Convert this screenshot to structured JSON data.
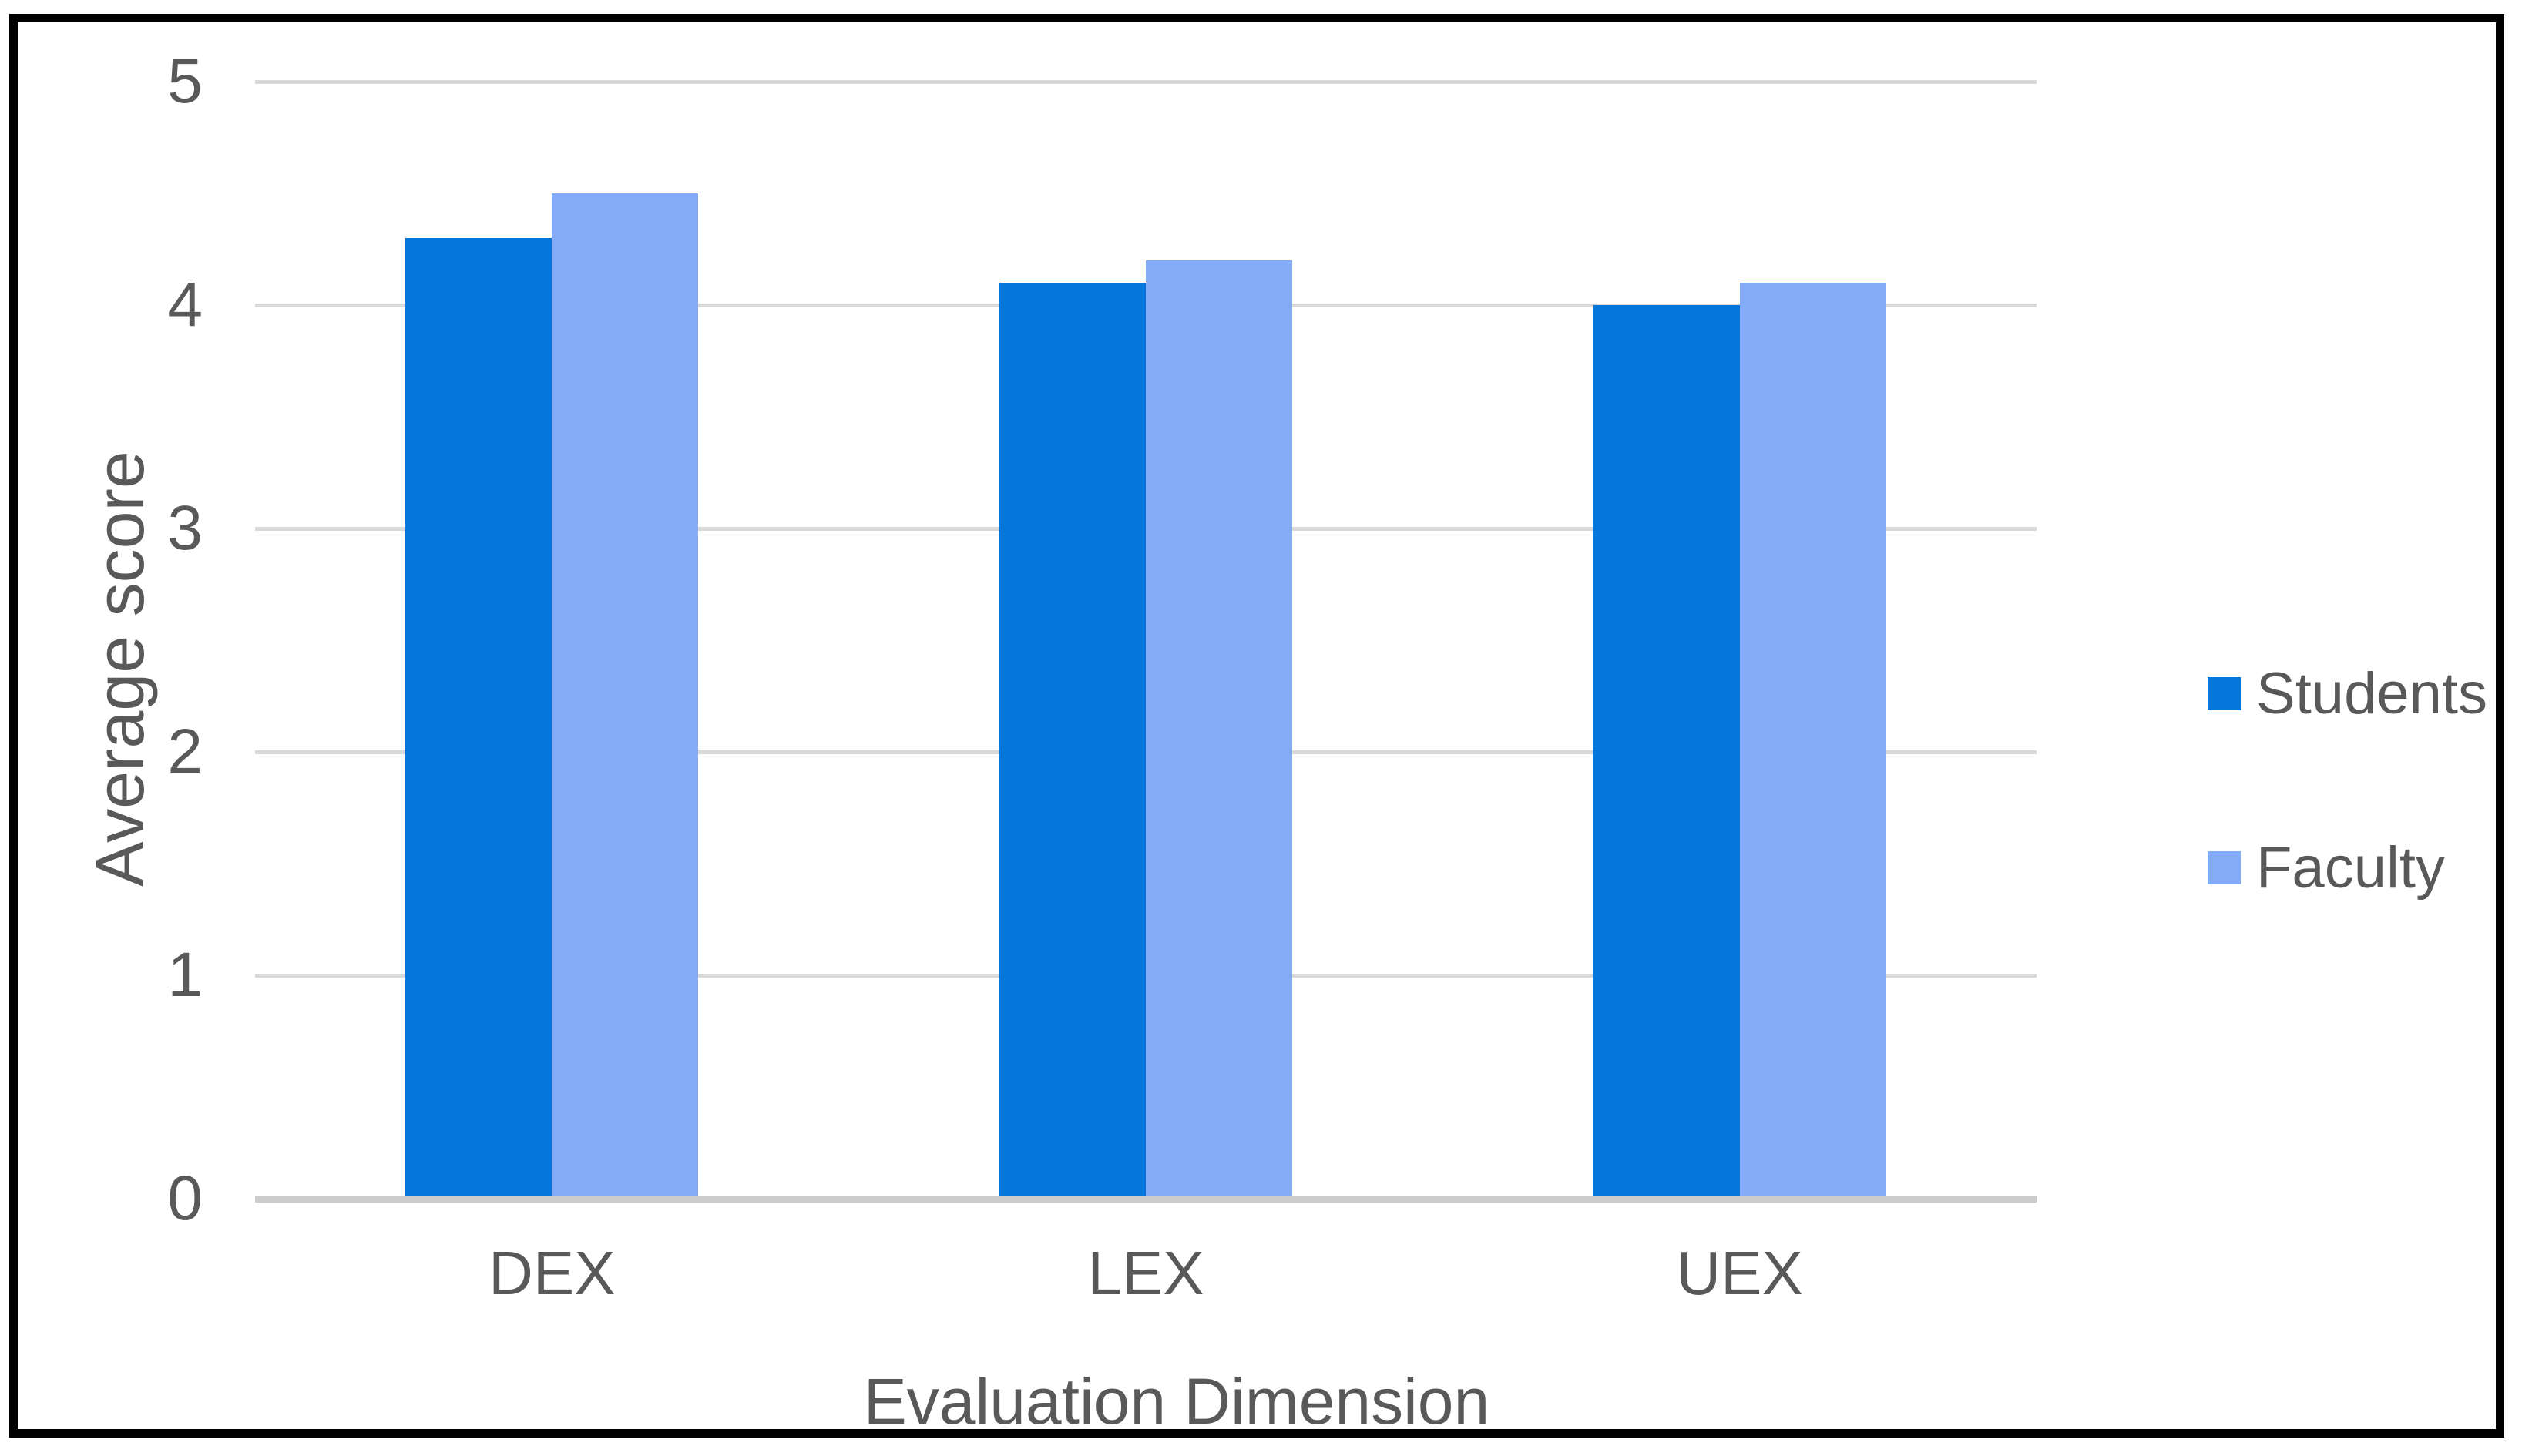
{
  "chart_data": {
    "type": "bar",
    "title": "",
    "categories": [
      "DEX",
      "LEX",
      "UEX"
    ],
    "series": [
      {
        "name": "Students",
        "color": "#0577DC",
        "values": [
          4.3,
          4.1,
          4.0
        ]
      },
      {
        "name": "Faculty",
        "color": "#84ACF6",
        "values": [
          4.5,
          4.2,
          4.1
        ]
      }
    ],
    "xlabel": "Evaluation Dimension",
    "ylabel": "Average score",
    "ylim": [
      0,
      5
    ],
    "yticks": [
      0,
      1,
      2,
      3,
      4,
      5
    ],
    "grid": true,
    "legend_position": "right",
    "colors": {
      "gridline": "#d9d9d9",
      "axis_line": "#cccccc",
      "text": "#595959",
      "frame_border": "#000000",
      "background": "#ffffff"
    }
  }
}
